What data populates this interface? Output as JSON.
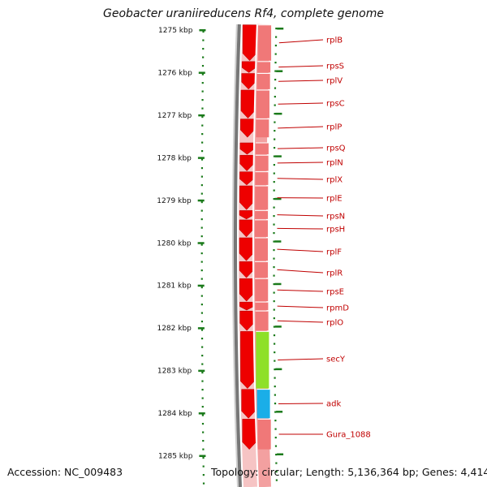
{
  "title": "Geobacter uraniireducens Rf4, complete genome",
  "accession": "Accession: NC_009483",
  "topology": "Topology: circular; Length: 5,136,364 bp; Genes: 4,414",
  "ruler": {
    "ticks": [
      "1275 kbp",
      "1276 kbp",
      "1277 kbp",
      "1278 kbp",
      "1279 kbp",
      "1280 kbp",
      "1281 kbp",
      "1282 kbp",
      "1283 kbp",
      "1284 kbp",
      "1285 kbp"
    ]
  },
  "colors": {
    "cds_forward": "#ee0000",
    "cds_reverse_track": "#f07878",
    "secY": "#8ee028",
    "adk": "#1aaee8",
    "label": "#c00000",
    "tick": "#1a7a1a",
    "backbone": "#777777"
  },
  "genes": [
    {
      "name": "rplB",
      "kbp_start": 1274.88,
      "kbp_end": 1275.72,
      "track_color": "reverse"
    },
    {
      "name": "rpsS",
      "kbp_start": 1275.74,
      "kbp_end": 1276.0,
      "track_color": "reverse"
    },
    {
      "name": "rplV",
      "kbp_start": 1276.02,
      "kbp_end": 1276.39,
      "track_color": "reverse"
    },
    {
      "name": "rpsC",
      "kbp_start": 1276.41,
      "kbp_end": 1277.07,
      "track_color": "reverse"
    },
    {
      "name": "rplP",
      "kbp_start": 1277.09,
      "kbp_end": 1277.52,
      "track_color": "reverse"
    },
    {
      "name": "rpsQ",
      "kbp_start": 1277.65,
      "kbp_end": 1277.92,
      "track_color": "reverse"
    },
    {
      "name": "rplN",
      "kbp_start": 1277.94,
      "kbp_end": 1278.31,
      "track_color": "reverse"
    },
    {
      "name": "rplX",
      "kbp_start": 1278.33,
      "kbp_end": 1278.64,
      "track_color": "reverse"
    },
    {
      "name": "rplE",
      "kbp_start": 1278.66,
      "kbp_end": 1279.22,
      "track_color": "reverse"
    },
    {
      "name": "rpsN",
      "kbp_start": 1279.24,
      "kbp_end": 1279.44,
      "track_color": "reverse"
    },
    {
      "name": "rpsH",
      "kbp_start": 1279.46,
      "kbp_end": 1279.86,
      "track_color": "reverse"
    },
    {
      "name": "rplF",
      "kbp_start": 1279.88,
      "kbp_end": 1280.42,
      "track_color": "reverse"
    },
    {
      "name": "rplR",
      "kbp_start": 1280.44,
      "kbp_end": 1280.82,
      "track_color": "reverse"
    },
    {
      "name": "rpsE",
      "kbp_start": 1280.84,
      "kbp_end": 1281.37,
      "track_color": "reverse"
    },
    {
      "name": "rpmD",
      "kbp_start": 1281.39,
      "kbp_end": 1281.58,
      "track_color": "reverse"
    },
    {
      "name": "rplO",
      "kbp_start": 1281.6,
      "kbp_end": 1282.06,
      "track_color": "reverse"
    },
    {
      "name": "secY",
      "kbp_start": 1282.08,
      "kbp_end": 1283.42,
      "track_color": "secY"
    },
    {
      "name": "adk",
      "kbp_start": 1283.44,
      "kbp_end": 1284.12,
      "track_color": "adk"
    },
    {
      "name": "Gura_1088",
      "kbp_start": 1284.14,
      "kbp_end": 1284.85,
      "track_color": "reverse"
    }
  ]
}
